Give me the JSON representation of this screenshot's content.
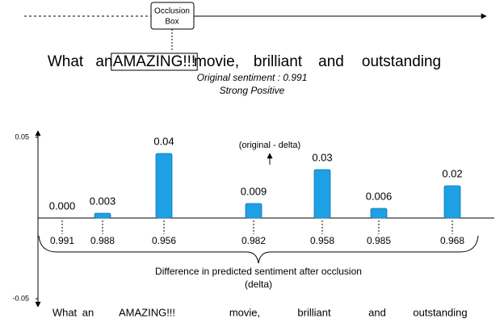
{
  "header": {
    "box_label_lines": [
      "Occlusion",
      "Box"
    ],
    "sentence": [
      "What",
      "an",
      "AMAZING!!!",
      "movie,",
      "brilliant",
      "and",
      "outstanding"
    ],
    "occluded_index": 2,
    "original_sentiment": "Original sentiment : 0.991",
    "sentiment_class": "Strong Positive"
  },
  "chart_data": {
    "type": "bar",
    "categories": [
      "What",
      "an",
      "AMAZING!!!",
      "movie,",
      "brilliant",
      "and",
      "outstanding"
    ],
    "values": [
      0,
      0.003,
      0.04,
      0.009,
      0.03,
      0.006,
      0.02
    ],
    "value_labels": [
      "0.000",
      "0.003",
      "0.04",
      "0.009",
      "0.03",
      "0.006",
      "0.02"
    ],
    "sentiments": [
      0.991,
      0.988,
      0.956,
      0.982,
      0.958,
      0.985,
      0.968
    ],
    "annotation": "(original - delta)",
    "xlabel_lines": [
      "Difference in predicted sentiment after occlusion",
      "(delta)"
    ],
    "ylim": [
      -0.055,
      0.055
    ],
    "yticks": [
      0.05,
      -0.05
    ],
    "color": "#1ea0e4"
  }
}
